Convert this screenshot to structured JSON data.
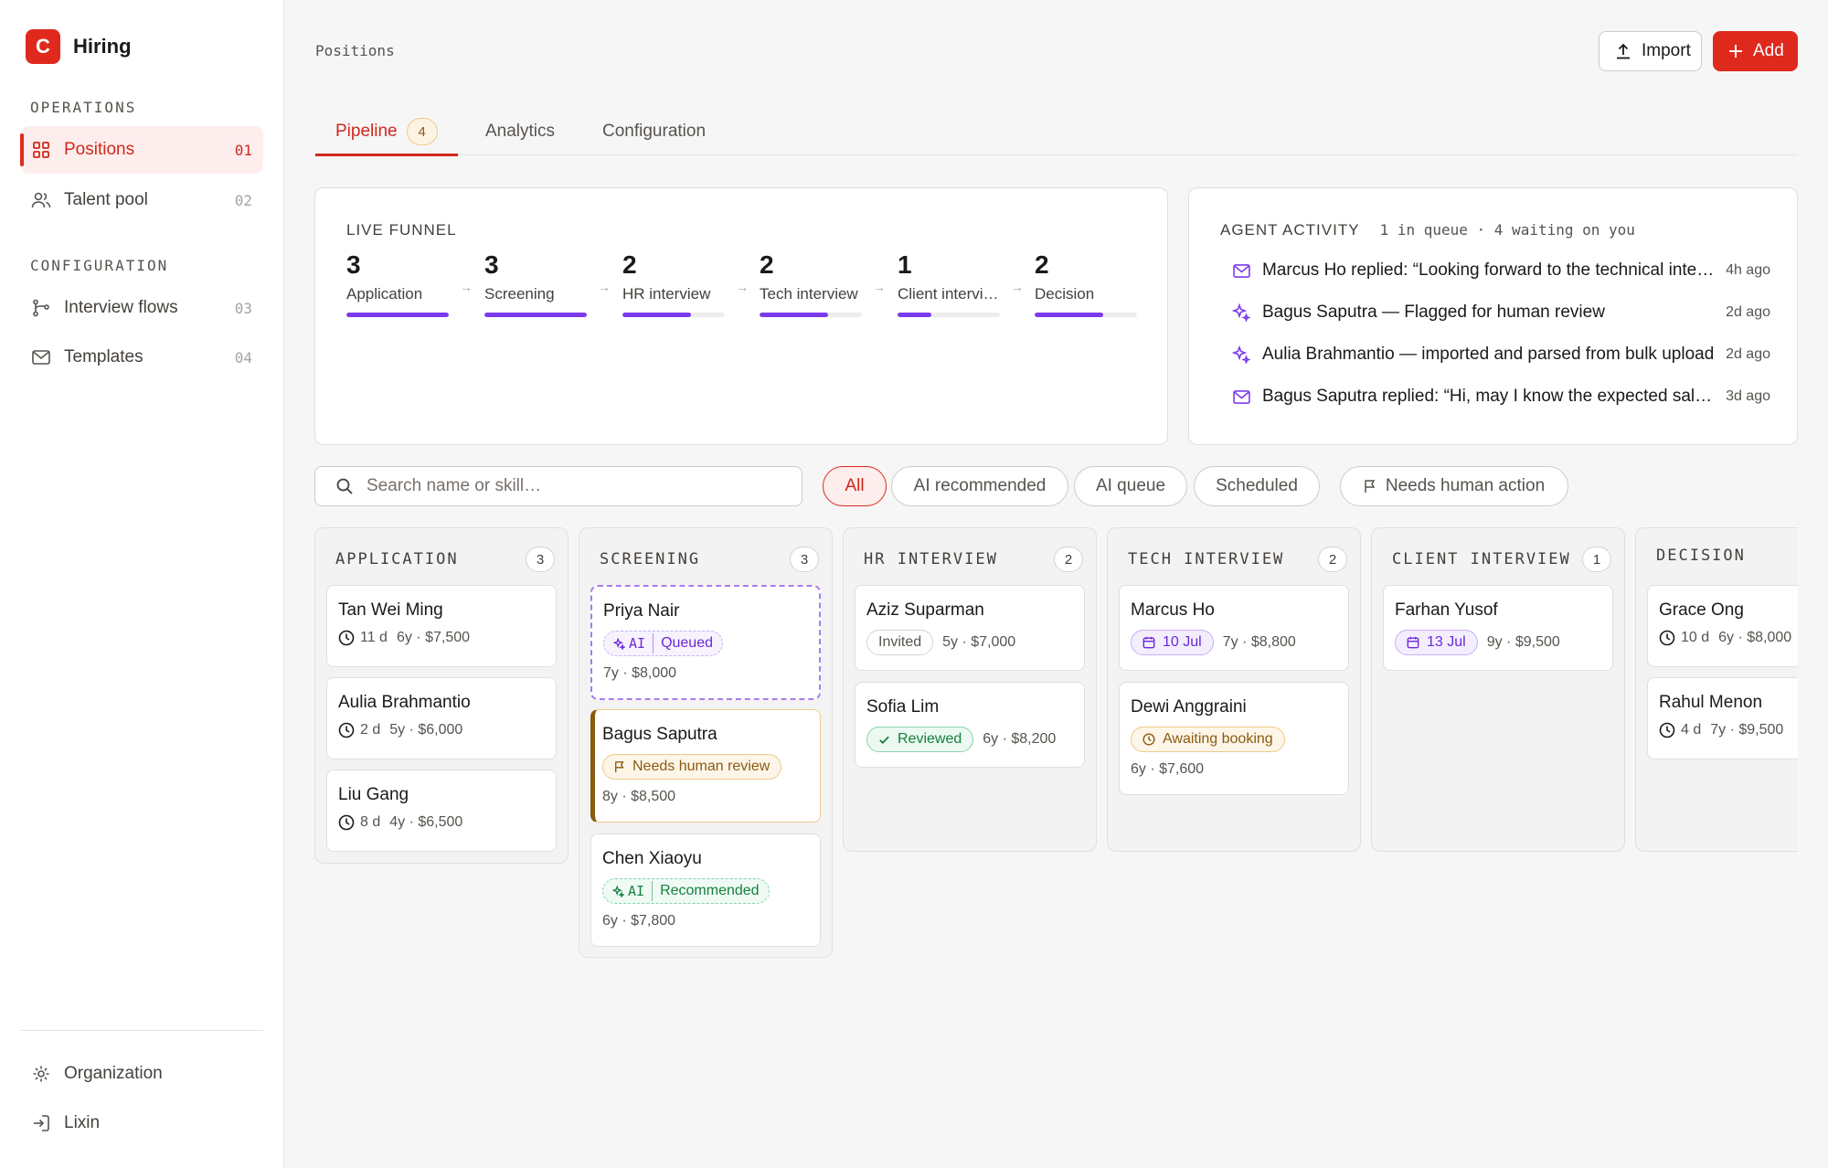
{
  "brand": {
    "logo_letter": "C",
    "name": "Hiring"
  },
  "sidebar": {
    "sections": [
      {
        "label": "OPERATIONS"
      },
      {
        "label": "CONFIGURATION"
      }
    ],
    "items": [
      {
        "label": "Positions",
        "num": "01",
        "icon": "grid-icon",
        "active": true
      },
      {
        "label": "Talent pool",
        "num": "02",
        "icon": "users-icon"
      },
      {
        "label": "Interview flows",
        "num": "03",
        "icon": "branch-icon"
      },
      {
        "label": "Templates",
        "num": "04",
        "icon": "mail-icon"
      }
    ],
    "footer": [
      {
        "label": "Organization",
        "icon": "gear-icon"
      },
      {
        "label": "Lixin",
        "icon": "sign-in-icon"
      }
    ]
  },
  "header": {
    "breadcrumb": "Positions",
    "import_label": "Import",
    "add_label": "Add"
  },
  "tabs": [
    {
      "label": "Pipeline",
      "badge": "4",
      "active": true
    },
    {
      "label": "Analytics"
    },
    {
      "label": "Configuration"
    }
  ],
  "funnel": {
    "title": "LIVE FUNNEL",
    "stages": [
      {
        "count": "3",
        "label": "Application",
        "fill": 1.0
      },
      {
        "count": "3",
        "label": "Screening",
        "fill": 1.0
      },
      {
        "count": "2",
        "label": "HR interview",
        "fill": 0.67
      },
      {
        "count": "2",
        "label": "Tech interview",
        "fill": 0.67
      },
      {
        "count": "1",
        "label": "Client interview",
        "fill": 0.33
      },
      {
        "count": "2",
        "label": "Decision",
        "fill": 0.67
      }
    ]
  },
  "activity": {
    "title": "AGENT ACTIVITY",
    "summary": "1 in queue · 4 waiting on you",
    "items": [
      {
        "icon": "mail-icon",
        "text": "Marcus Ho replied: “Looking forward to the technical interview”",
        "time": "4h ago"
      },
      {
        "icon": "sparkle-icon",
        "text": "Bagus Saputra — Flagged for human review",
        "time": "2d ago"
      },
      {
        "icon": "sparkle-icon",
        "text": "Aulia Brahmantio — imported and parsed from bulk upload",
        "time": "2d ago"
      },
      {
        "icon": "mail-icon",
        "text": "Bagus Saputra replied: “Hi, may I know the expected salary range?”",
        "time": "3d ago"
      }
    ]
  },
  "filters": {
    "search_placeholder": "Search name or skill…",
    "chips": [
      {
        "label": "All",
        "active": true
      },
      {
        "label": "AI recommended"
      },
      {
        "label": "AI queue"
      },
      {
        "label": "Scheduled"
      },
      {
        "label": "Needs human action",
        "icon": "flag-icon"
      }
    ]
  },
  "colors": {
    "brand": "#e0291d",
    "accent": "#7c3aed"
  },
  "board": {
    "columns": [
      {
        "title": "APPLICATION",
        "count": "3",
        "cards": [
          {
            "name": "Tan Wei Ming",
            "age": "11 d",
            "meta": "6y · $7,500"
          },
          {
            "name": "Aulia Brahmantio",
            "age": "2 d",
            "meta": "5y · $6,000"
          },
          {
            "name": "Liu Gang",
            "age": "8 d",
            "meta": "4y · $6,500"
          }
        ]
      },
      {
        "title": "SCREENING",
        "count": "3",
        "cards": [
          {
            "name": "Priya Nair",
            "ai_tag": "AI",
            "status": "Queued",
            "meta": "7y · $8,000"
          },
          {
            "name": "Bagus Saputra",
            "status": "Needs human review",
            "meta": "8y · $8,500"
          },
          {
            "name": "Chen Xiaoyu",
            "ai_tag": "AI",
            "status": "Recommended",
            "meta": "6y · $7,800"
          }
        ]
      },
      {
        "title": "HR INTERVIEW",
        "count": "2",
        "cards": [
          {
            "name": "Aziz Suparman",
            "status": "Invited",
            "meta": "5y · $7,000"
          },
          {
            "name": "Sofia Lim",
            "status": "Reviewed",
            "meta": "6y · $8,200"
          }
        ]
      },
      {
        "title": "TECH INTERVIEW",
        "count": "2",
        "cards": [
          {
            "name": "Marcus Ho",
            "status": "10 Jul",
            "meta": "7y · $8,800"
          },
          {
            "name": "Dewi Anggraini",
            "status": "Awaiting booking",
            "meta": "6y · $7,600"
          }
        ]
      },
      {
        "title": "CLIENT INTERVIEW",
        "count": "1",
        "cards": [
          {
            "name": "Farhan Yusof",
            "status": "13 Jul",
            "meta": "9y · $9,500"
          }
        ]
      },
      {
        "title": "DECISION",
        "count": "",
        "cards": [
          {
            "name": "Grace Ong",
            "age": "10 d",
            "meta": "6y · $8,000"
          },
          {
            "name": "Rahul Menon",
            "age": "4 d",
            "meta": "7y · $9,500"
          }
        ]
      }
    ]
  }
}
